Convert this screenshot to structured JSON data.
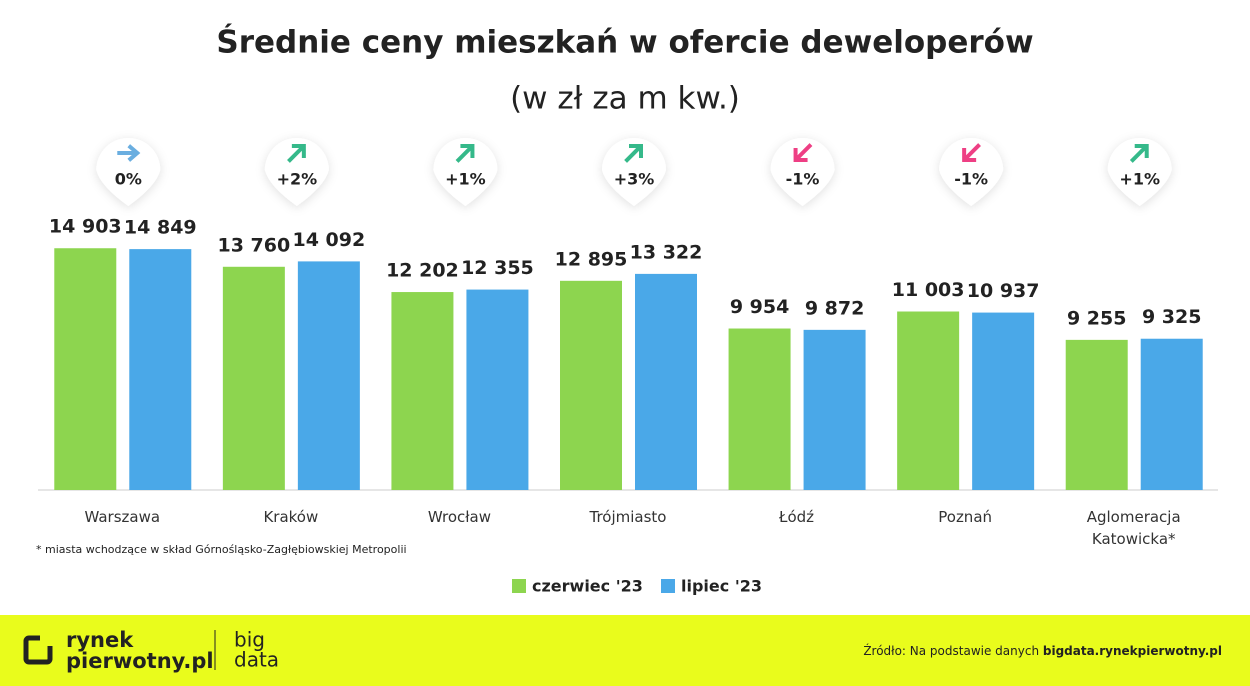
{
  "chart_data": {
    "type": "bar",
    "title": "Średnie ceny mieszkań w ofercie deweloperów",
    "subtitle": "(w zł za m kw.)",
    "categories": [
      "Warszawa",
      "Kraków",
      "Wrocław",
      "Trójmiasto",
      "Łódź",
      "Poznań",
      "Aglomeracja\nKatowicka*"
    ],
    "series": [
      {
        "name": "czerwiec '23",
        "color": "#8dd54f",
        "values": [
          14903,
          13760,
          12202,
          12895,
          9954,
          11003,
          9255
        ],
        "value_labels": [
          "14 903",
          "13 760",
          "12 202",
          "12 895",
          "9 954",
          "11 003",
          "9 255"
        ]
      },
      {
        "name": "lipiec '23",
        "color": "#4aa8e8",
        "values": [
          14849,
          14092,
          12355,
          13322,
          9872,
          10937,
          9325
        ],
        "value_labels": [
          "14 849",
          "14 092",
          "12 355",
          "13 322",
          "9 872",
          "10 937",
          "9 325"
        ]
      }
    ],
    "changes": [
      0,
      2,
      1,
      3,
      -1,
      -1,
      1
    ],
    "change_labels": [
      "0%",
      "+2%",
      "+1%",
      "+3%",
      "-1%",
      "-1%",
      "+1%"
    ],
    "change_colors": {
      "up": "#35b98a",
      "flat": "#6aaee0",
      "down": "#ee3f84"
    },
    "ylim": [
      0,
      18000
    ],
    "footnote": "* miasta wchodzące w skład Górnośląsko-Zagłębiowskiej Metropolii",
    "legend": "bottom"
  },
  "footer": {
    "logo_top": "rynek",
    "logo_bottom": "pierwotny.pl",
    "logo_big": "big",
    "logo_data": "data",
    "source_prefix": "Źródło: Na podstawie danych ",
    "source_link": "bigdata.rynekpierwotny.pl"
  }
}
